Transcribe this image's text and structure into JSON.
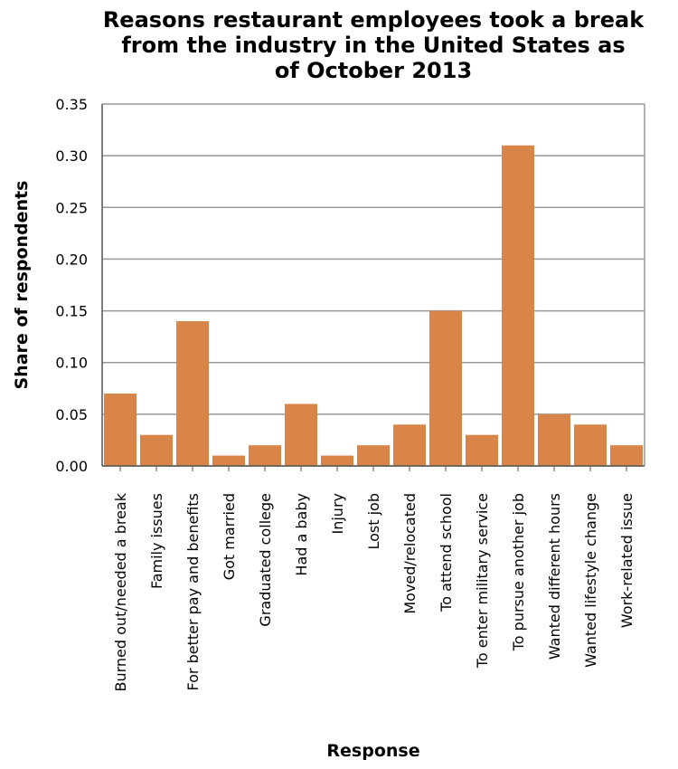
{
  "chart_data": {
    "type": "bar",
    "title_lines": [
      "Reasons restaurant employees took a break",
      "from the industry in the United States as",
      "of October 2013"
    ],
    "xlabel": "Response",
    "ylabel": "Share of respondents",
    "ylim": [
      0,
      0.35
    ],
    "yticks": [
      "0.00",
      "0.05",
      "0.10",
      "0.15",
      "0.20",
      "0.25",
      "0.30",
      "0.35"
    ],
    "grid": true,
    "bar_color": "#d9854a",
    "categories": [
      "Burned out/needed a break",
      "Family issues",
      "For better pay and benefits",
      "Got married",
      "Graduated college",
      "Had a baby",
      "Injury",
      "Lost job",
      "Moved/relocated",
      "To attend school",
      "To enter military service",
      "To pursue another job",
      "Wanted different hours",
      "Wanted lifestyle change",
      "Work-related issue"
    ],
    "values": [
      0.07,
      0.03,
      0.14,
      0.01,
      0.02,
      0.06,
      0.01,
      0.02,
      0.04,
      0.15,
      0.03,
      0.31,
      0.05,
      0.04,
      0.02
    ]
  }
}
